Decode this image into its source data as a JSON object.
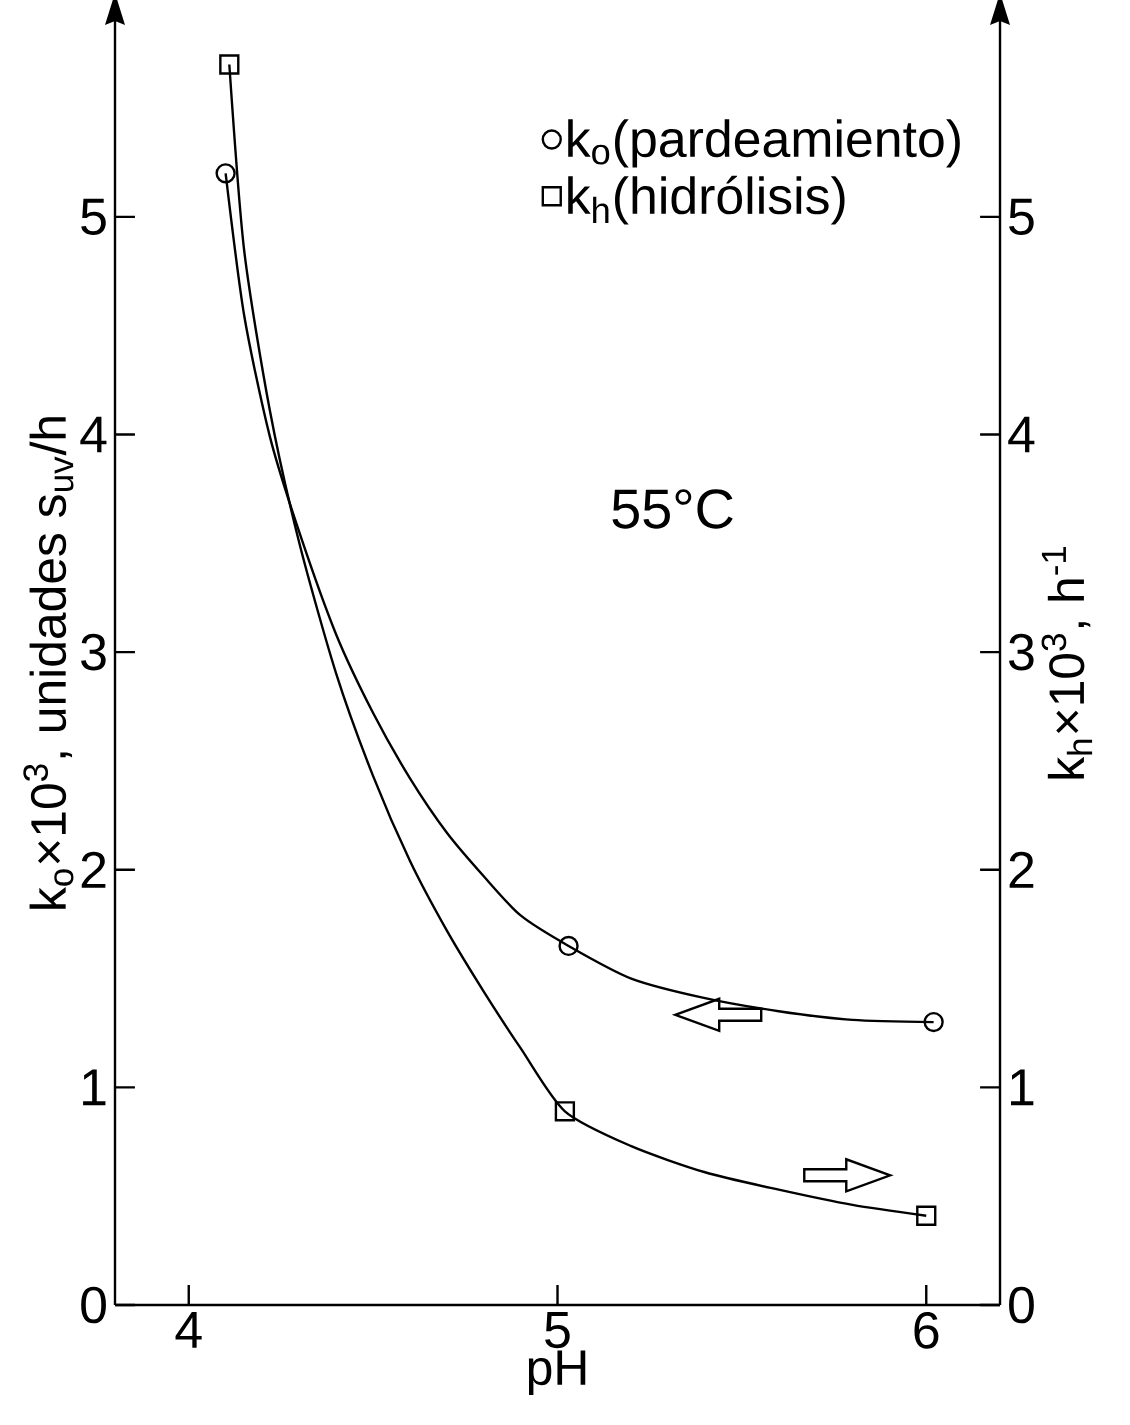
{
  "chart_data": {
    "type": "scatter",
    "xlabel": "pH",
    "ylabel": "k$_{o}$×10$^{3}$, unidades s$_{uv}$/h",
    "y2label": "k$_{h}$×10$^{3}$, h$^{-1}$",
    "annotations": [
      "55°C"
    ],
    "xlim": [
      3.8,
      6.2
    ],
    "xticks": [
      4,
      5,
      6
    ],
    "ylim": [
      0,
      5.9
    ],
    "yticks": [
      0,
      1,
      2,
      3,
      4,
      5
    ],
    "y2lim": [
      0,
      5.9
    ],
    "y2ticks": [
      0,
      1,
      2,
      3,
      4,
      5
    ],
    "legend": "top right",
    "series": [
      {
        "name": "k$_{o}$(pardeamiento)",
        "marker": "circle",
        "color": "#000000",
        "x": [
          4.1,
          5.03,
          6.02
        ],
        "values": [
          5.2,
          1.65,
          1.3
        ]
      },
      {
        "name": "k$_{h}$(hidrólisis)",
        "marker": "square",
        "axis": "y2",
        "color": "#000000",
        "x": [
          4.11,
          5.02,
          6.0
        ],
        "values": [
          5.7,
          0.89,
          0.41
        ]
      },
      {
        "type": "line",
        "color": "#000000",
        "x": [
          4.1,
          4.15,
          4.22,
          4.3,
          4.4,
          4.5,
          4.6,
          4.7,
          4.8,
          4.9,
          5.03,
          5.2,
          5.4,
          5.6,
          5.8,
          6.02
        ],
        "values": [
          5.2,
          4.55,
          3.99,
          3.55,
          3.08,
          2.72,
          2.42,
          2.17,
          1.97,
          1.79,
          1.65,
          1.5,
          1.41,
          1.35,
          1.31,
          1.3
        ]
      },
      {
        "type": "line",
        "axis": "y2",
        "color": "#000000",
        "x": [
          4.11,
          4.15,
          4.22,
          4.3,
          4.4,
          4.5,
          4.6,
          4.7,
          4.8,
          4.9,
          5.02,
          5.2,
          5.4,
          5.6,
          5.8,
          6.0
        ],
        "values": [
          5.7,
          4.85,
          4.11,
          3.5,
          2.9,
          2.43,
          2.04,
          1.72,
          1.44,
          1.18,
          0.89,
          0.73,
          0.61,
          0.53,
          0.46,
          0.41
        ]
      }
    ]
  }
}
